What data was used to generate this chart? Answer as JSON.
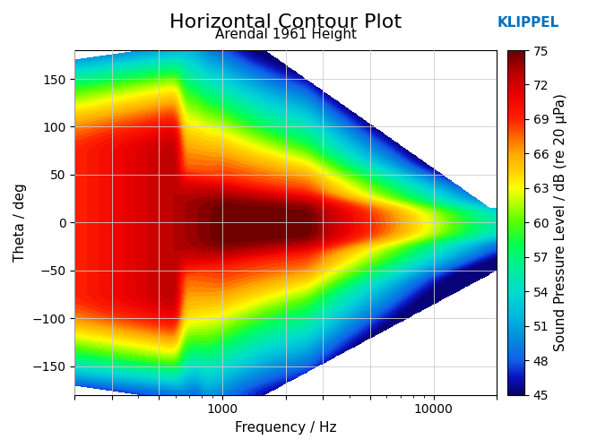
{
  "title": "Horizontal Contour Plot",
  "subtitle": "Arendal 1961 Height",
  "xlabel": "Frequency / Hz",
  "ylabel": "Theta / deg",
  "colorbar_label": "Sound Pressure Level / dB (re 20 μPa)",
  "klippel_text": "KLIPPEL",
  "klippel_color": "#0070C0",
  "freq_min": 200,
  "freq_max": 20000,
  "theta_min": -180,
  "theta_max": 180,
  "vmin": 45,
  "vmax": 75,
  "colorbar_ticks": [
    45,
    48,
    51,
    54,
    57,
    60,
    63,
    66,
    69,
    72,
    75
  ],
  "background_color": "#ffffff",
  "grid_color": "#cccccc",
  "title_fontsize": 16,
  "subtitle_fontsize": 11,
  "label_fontsize": 11,
  "tick_fontsize": 10,
  "colormap_nodes": [
    [
      0.0,
      "#08006B"
    ],
    [
      0.05,
      "#0A12C0"
    ],
    [
      0.1,
      "#1060E8"
    ],
    [
      0.167,
      "#0090DD"
    ],
    [
      0.233,
      "#00BBDD"
    ],
    [
      0.3,
      "#00DDCC"
    ],
    [
      0.367,
      "#00EE99"
    ],
    [
      0.433,
      "#00FF55"
    ],
    [
      0.5,
      "#55FF00"
    ],
    [
      0.55,
      "#AAFF00"
    ],
    [
      0.6,
      "#FFFF00"
    ],
    [
      0.65,
      "#FFD000"
    ],
    [
      0.7,
      "#FFAA00"
    ],
    [
      0.75,
      "#FF6600"
    ],
    [
      0.8,
      "#FF2200"
    ],
    [
      0.867,
      "#EE0000"
    ],
    [
      0.933,
      "#BB0000"
    ],
    [
      1.0,
      "#660000"
    ]
  ]
}
